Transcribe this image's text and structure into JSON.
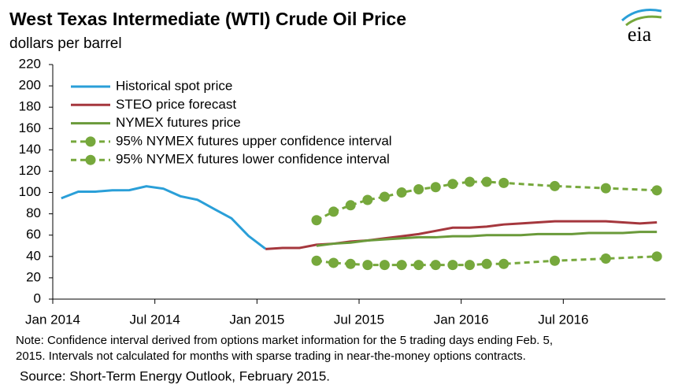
{
  "chart_data": {
    "type": "line",
    "title": "West Texas Intermediate (WTI) Crude Oil Price",
    "subtitle": "dollars per barrel",
    "logo": "eia",
    "note": [
      "Note: Confidence interval derived from options market information for the 5 trading days ending Feb. 5,",
      "2015. Intervals not calculated for months with sparse trading in near-the-money options contracts."
    ],
    "source": "Source: Short-Term Energy Outlook, February 2015.",
    "categories": [
      "Jan 2014",
      null,
      null,
      null,
      null,
      null,
      "Jul 2014",
      null,
      null,
      null,
      null,
      null,
      "Jan 2015",
      null,
      null,
      null,
      null,
      null,
      "Jul 2015",
      null,
      null,
      null,
      null,
      null,
      "Jan 2016",
      null,
      null,
      null,
      null,
      null,
      "Jul 2016",
      null,
      null,
      null,
      null,
      null
    ],
    "ylim": [
      0,
      220
    ],
    "yticks": [
      0,
      20,
      40,
      60,
      80,
      100,
      120,
      140,
      160,
      180,
      200,
      220
    ],
    "legend": "upper left",
    "connect_gaps": true,
    "series": [
      {
        "name": "Historical spot price",
        "color": "#2a9fd8",
        "values": [
          94.6,
          100.8,
          100.8,
          102.1,
          102.2,
          105.8,
          103.6,
          96.5,
          93.2,
          84.4,
          75.8,
          59.3,
          47.2,
          null,
          null,
          null,
          null,
          null,
          null,
          null,
          null,
          null,
          null,
          null,
          null,
          null,
          null,
          null,
          null,
          null,
          null,
          null,
          null,
          null,
          null,
          null
        ]
      },
      {
        "name": "STEO price forecast",
        "color": "#a5373d",
        "values": [
          null,
          null,
          null,
          null,
          null,
          null,
          null,
          null,
          null,
          null,
          null,
          null,
          47,
          48,
          48,
          51,
          52,
          54,
          55,
          57,
          59,
          61,
          64,
          67,
          67,
          68,
          70,
          71,
          72,
          73,
          73,
          73,
          73,
          72,
          71,
          72
        ]
      },
      {
        "name": "NYMEX futures price",
        "color": "#6a9a3a",
        "values": [
          null,
          null,
          null,
          null,
          null,
          null,
          null,
          null,
          null,
          null,
          null,
          null,
          null,
          null,
          null,
          50,
          52,
          53,
          55,
          56,
          57,
          58,
          58,
          59,
          59,
          60,
          60,
          60,
          61,
          61,
          61,
          62,
          62,
          62,
          63,
          63
        ]
      },
      {
        "name": "95% NYMEX futures upper confidence interval",
        "color": "#76a83c",
        "dashed": true,
        "markers": true,
        "values": [
          null,
          null,
          null,
          null,
          null,
          null,
          null,
          null,
          null,
          null,
          null,
          null,
          null,
          null,
          null,
          74,
          82,
          88,
          93,
          96,
          100,
          103,
          105,
          108,
          110,
          110,
          109,
          null,
          null,
          106,
          null,
          null,
          104,
          null,
          null,
          102
        ]
      },
      {
        "name": "95% NYMEX futures lower confidence interval",
        "color": "#76a83c",
        "dashed": true,
        "markers": true,
        "values": [
          null,
          null,
          null,
          null,
          null,
          null,
          null,
          null,
          null,
          null,
          null,
          null,
          null,
          null,
          null,
          36,
          34,
          33,
          32,
          32,
          32,
          32,
          32,
          32,
          32,
          33,
          33,
          null,
          null,
          36,
          null,
          null,
          38,
          null,
          null,
          40
        ]
      }
    ]
  }
}
